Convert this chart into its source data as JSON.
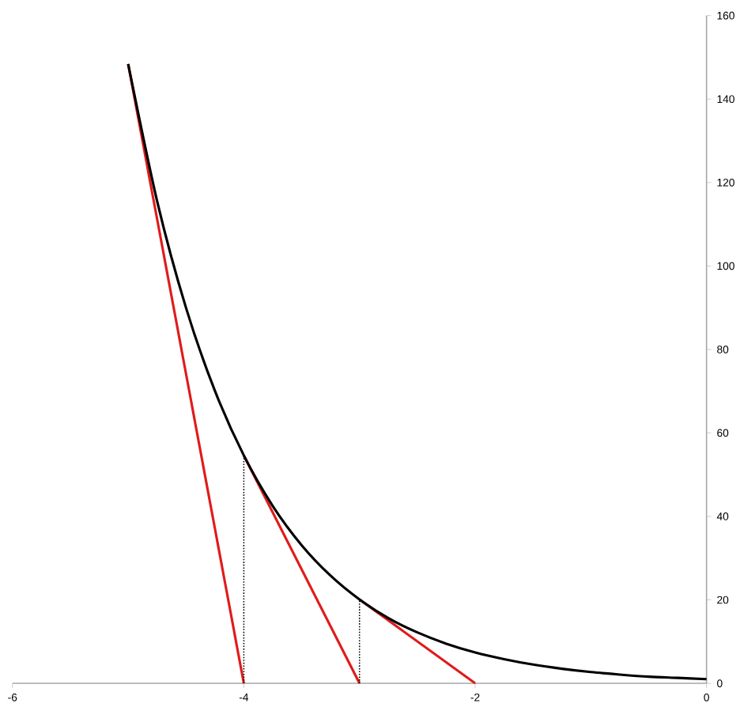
{
  "chart_data": {
    "type": "line",
    "xlim": [
      -6,
      0
    ],
    "ylim": [
      0,
      160
    ],
    "xticks": [
      -6,
      -4,
      -2,
      0
    ],
    "yticks": [
      0,
      20,
      40,
      60,
      80,
      100,
      120,
      140,
      160
    ],
    "marker": "none",
    "series": [
      {
        "color": "#e01b1b",
        "line_style": "solid",
        "x": [
          -5,
          -4
        ],
        "values": [
          148.4,
          0
        ]
      },
      {
        "color": "#e01b1b",
        "line_style": "solid",
        "x": [
          -4,
          -3
        ],
        "values": [
          54.6,
          0
        ]
      },
      {
        "color": "#e01b1b",
        "line_style": "solid",
        "x": [
          -3,
          -2
        ],
        "values": [
          20.1,
          0
        ]
      },
      {
        "color": "#000000",
        "line_style": "dotted",
        "x": [
          -4,
          -4
        ],
        "values": [
          0,
          54.6
        ]
      },
      {
        "color": "#000000",
        "line_style": "dotted",
        "x": [
          -3,
          -3
        ],
        "values": [
          0,
          20.1
        ]
      },
      {
        "color": "#000000",
        "line_style": "solid",
        "x": [
          -5,
          -4.75,
          -4.5,
          -4.25,
          -4,
          -3.75,
          -3.5,
          -3.25,
          -3,
          -2.75,
          -2.5,
          -2.25,
          -2,
          -1.75,
          -1.5,
          -1.25,
          -1,
          -0.75,
          -0.5,
          -0.25,
          0
        ],
        "values": [
          148.4,
          115.6,
          90.0,
          70.1,
          54.6,
          42.5,
          33.1,
          25.8,
          20.1,
          15.6,
          12.2,
          9.5,
          7.4,
          5.8,
          4.5,
          3.5,
          2.7,
          2.1,
          1.6,
          1.3,
          1.0
        ]
      }
    ]
  }
}
